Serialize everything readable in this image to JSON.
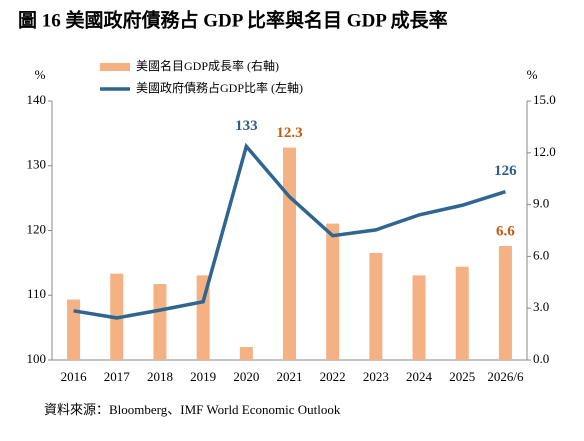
{
  "chart_data": {
    "type": "combo",
    "title": "圖 16 美國政府債務占 GDP 比率與名目 GDP 成長率",
    "y_label": "%",
    "y2_label": "%",
    "source": "資料來源：Bloomberg、IMF World Economic Outlook",
    "categories": [
      "2016",
      "2017",
      "2018",
      "2019",
      "2020",
      "2021",
      "2022",
      "2023",
      "2024",
      "2025",
      "2026/6"
    ],
    "ylim": [
      100,
      140
    ],
    "yticks": [
      100,
      110,
      120,
      130,
      140
    ],
    "y2lim": [
      0,
      15
    ],
    "y2ticks": [
      {
        "value": 0,
        "label": "0.0"
      },
      {
        "value": 3,
        "label": "3.0"
      },
      {
        "value": 6,
        "label": "6.0"
      },
      {
        "value": 9,
        "label": "9.0"
      },
      {
        "value": 12,
        "label": "12.0"
      },
      {
        "value": 15,
        "label": "15.0"
      }
    ],
    "legend": "top-left",
    "series": [
      {
        "name": "美國名目GDP成長率 (右軸)",
        "type": "bar",
        "axis": "y2",
        "color": "#f4b183",
        "label_color": "#c55a11",
        "values": [
          3.5,
          5.0,
          4.4,
          4.9,
          0.75,
          12.3,
          7.9,
          6.2,
          4.9,
          5.4,
          6.6
        ],
        "value_labels": [
          null,
          null,
          null,
          null,
          null,
          "12.3",
          null,
          null,
          null,
          null,
          "6.6"
        ]
      },
      {
        "name": "美國政府債務占GDP比率 (左軸)",
        "type": "line",
        "axis": "y",
        "color": "#2e6591",
        "label_color": "#2f5c85",
        "values": [
          107.6,
          106.5,
          107.7,
          109,
          133,
          125.2,
          119.2,
          120.1,
          122.4,
          123.9,
          126
        ],
        "value_labels": [
          null,
          null,
          null,
          null,
          "133",
          null,
          null,
          null,
          null,
          null,
          "126"
        ]
      }
    ]
  }
}
